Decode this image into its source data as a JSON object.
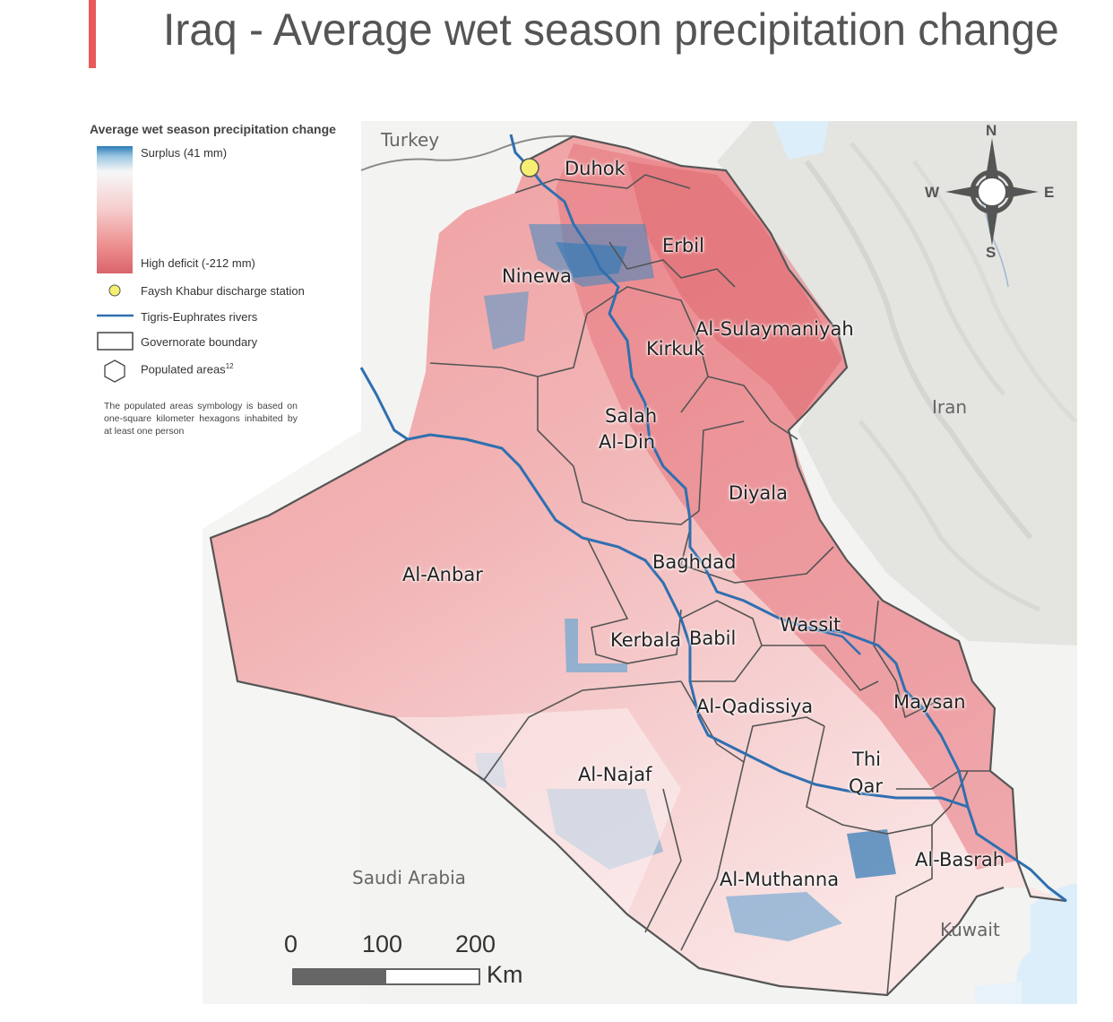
{
  "title": "Iraq - Average wet season precipitation change",
  "legend": {
    "title": "Average wet season precipitation change",
    "surplus_label": "Surplus (41 mm)",
    "deficit_label": "High deficit (-212 mm)",
    "station_label": "Faysh Khabur discharge station",
    "rivers_label": "Tigris-Euphrates rivers",
    "boundary_label": "Governorate boundary",
    "populated_label": "Populated areas",
    "populated_sup": "12",
    "note": "The populated areas symbology is based on one-square kilometer hexagons inhabited by at least one person",
    "colors": {
      "surplus": "#2d7cb8",
      "neutral": "#f7f7f7",
      "deficit": "#d9646c"
    }
  },
  "countries": {
    "turkey": "Turkey",
    "iran": "Iran",
    "saudi": "Saudi Arabia",
    "kuwait": "Kuwait"
  },
  "governorates": {
    "duhok": "Duhok",
    "erbil": "Erbil",
    "ninewa": "Ninewa",
    "sulaymaniyah": "Al-Sulaymaniyah",
    "kirkuk": "Kirkuk",
    "salah1": "Salah",
    "salah2": "Al-Din",
    "diyala": "Diyala",
    "anbar": "Al-Anbar",
    "baghdad": "Baghdad",
    "wassit": "Wassit",
    "kerbala": "Kerbala",
    "babil": "Babil",
    "qadissiya": "Al-Qadissiya",
    "maysan": "Maysan",
    "thiqar1": "Thi",
    "thiqar2": "Qar",
    "najaf": "Al-Najaf",
    "basrah": "Al-Basrah",
    "muthanna": "Al-Muthanna"
  },
  "scale": {
    "zero": "0",
    "hundred": "100",
    "twohundred": "200",
    "unit": "Km"
  },
  "compass": {
    "n": "N",
    "s": "S",
    "e": "E",
    "w": "W"
  }
}
